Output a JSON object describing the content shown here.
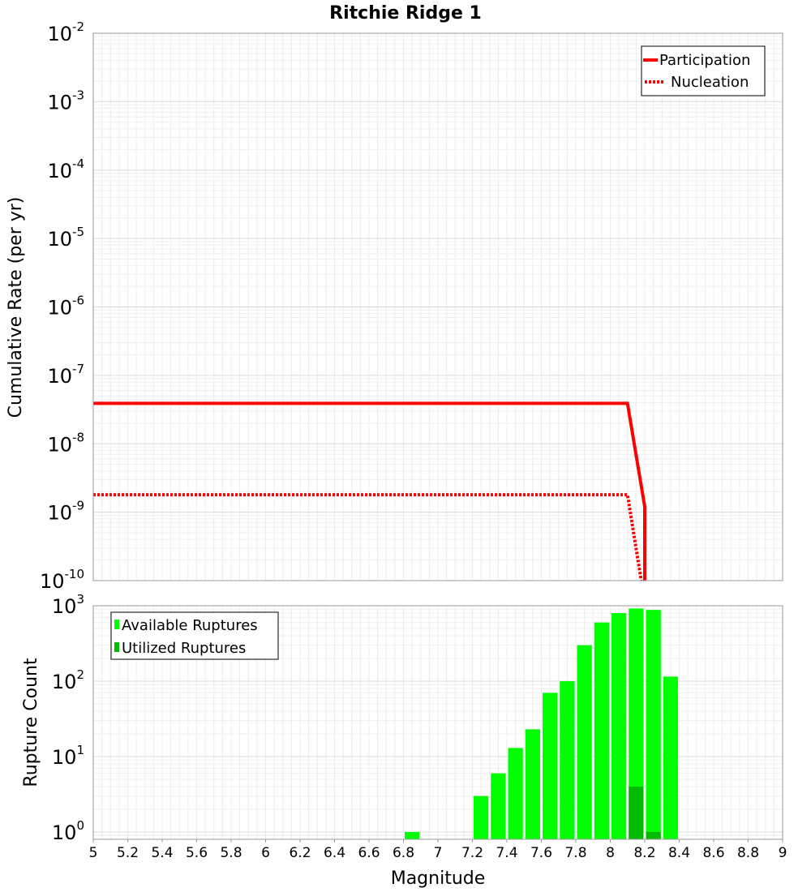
{
  "chart_data": [
    {
      "type": "line",
      "title": "Ritchie Ridge 1",
      "ylabel": "Cumulative Rate (per yr)",
      "xlabel": "",
      "xlim": [
        5,
        9
      ],
      "ylim": [
        1e-10,
        0.01
      ],
      "yscale": "log",
      "y_ticks": [
        {
          "base": "10",
          "exp": "-2",
          "value": 0.01
        },
        {
          "base": "10",
          "exp": "-3",
          "value": 0.001
        },
        {
          "base": "10",
          "exp": "-4",
          "value": 0.0001
        },
        {
          "base": "10",
          "exp": "-5",
          "value": 1e-05
        },
        {
          "base": "10",
          "exp": "-6",
          "value": 1e-06
        },
        {
          "base": "10",
          "exp": "-7",
          "value": 1e-07
        },
        {
          "base": "10",
          "exp": "-8",
          "value": 1e-08
        },
        {
          "base": "10",
          "exp": "-9",
          "value": 1e-09
        },
        {
          "base": "10",
          "exp": "-10",
          "value": 1e-10
        }
      ],
      "series": [
        {
          "name": "Participation",
          "style": "solid",
          "color": "#ff0000",
          "x": [
            5.0,
            8.1,
            8.2,
            8.2
          ],
          "y": [
            3.9e-08,
            3.9e-08,
            1.2e-09,
            1e-10
          ]
        },
        {
          "name": "Nucleation",
          "style": "dotted",
          "color": "#ff0000",
          "x": [
            5.0,
            8.1,
            8.18
          ],
          "y": [
            1.8e-09,
            1.8e-09,
            1e-10
          ]
        }
      ],
      "legend": {
        "placement": "top-right",
        "entries": [
          "Participation",
          "Nucleation"
        ]
      }
    },
    {
      "type": "bar",
      "title": "",
      "ylabel": "Rupture Count",
      "xlabel": "Magnitude",
      "xlim": [
        5,
        9
      ],
      "ylim": [
        0.8,
        1000
      ],
      "yscale": "log",
      "bin_width": 0.1,
      "y_ticks": [
        {
          "base": "10",
          "exp": "3",
          "value": 1000
        },
        {
          "base": "10",
          "exp": "2",
          "value": 100
        },
        {
          "base": "10",
          "exp": "1",
          "value": 10
        },
        {
          "base": "10",
          "exp": "0",
          "value": 1
        }
      ],
      "x_ticks": [
        "5",
        "5.2",
        "5.4",
        "5.6",
        "5.8",
        "6",
        "6.2",
        "6.4",
        "6.6",
        "6.8",
        "7",
        "7.2",
        "7.4",
        "7.6",
        "7.8",
        "8",
        "8.2",
        "8.4",
        "8.6",
        "8.8",
        "9"
      ],
      "categories": [
        "6.85",
        "7.25",
        "7.35",
        "7.45",
        "7.55",
        "7.65",
        "7.75",
        "7.85",
        "7.95",
        "8.05",
        "8.15",
        "8.25",
        "8.35"
      ],
      "series": [
        {
          "name": "Available Ruptures",
          "color": "#00ff00",
          "x": [
            6.85,
            7.25,
            7.35,
            7.45,
            7.55,
            7.65,
            7.75,
            7.85,
            7.95,
            8.05,
            8.15,
            8.25,
            8.35
          ],
          "values": [
            1,
            3,
            6,
            13,
            23,
            70,
            100,
            300,
            600,
            800,
            920,
            880,
            115
          ]
        },
        {
          "name": "Utilized Ruptures",
          "color": "#00bb00",
          "x": [
            8.15,
            8.25
          ],
          "values": [
            4,
            1
          ]
        }
      ],
      "legend": {
        "placement": "top-left",
        "entries": [
          "Available Ruptures",
          "Utilized Ruptures"
        ]
      }
    }
  ]
}
